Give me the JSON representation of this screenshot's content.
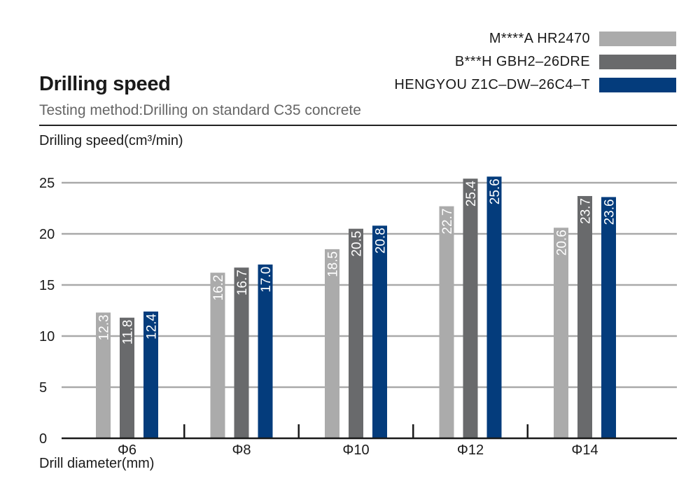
{
  "page": {
    "title": "Drilling speed",
    "subtitle": "Testing method:Drilling on standard C35 concrete"
  },
  "legend": [
    {
      "label": "M****A  HR2470",
      "color": "#ababab"
    },
    {
      "label": "B***H  GBH2–26DRE",
      "color": "#696a6c"
    },
    {
      "label": "HENGYOU  Z1C–DW–26C4–T",
      "color": "#043c7c"
    }
  ],
  "chart_data": {
    "type": "bar",
    "ylabel": "Drilling speed(cm³/min)",
    "xlabel": "Drill diameter(mm)",
    "categories": [
      "Φ6",
      "Φ8",
      "Φ10",
      "Φ12",
      "Φ14"
    ],
    "series": [
      {
        "name": "M****A  HR2470",
        "color": "#ababab",
        "values": [
          12.3,
          16.2,
          18.5,
          22.7,
          20.6
        ]
      },
      {
        "name": "B***H  GBH2–26DRE",
        "color": "#696a6c",
        "values": [
          11.8,
          16.7,
          20.5,
          25.4,
          23.7
        ]
      },
      {
        "name": "HENGYOU  Z1C–DW–26C4–T",
        "color": "#043c7c",
        "values": [
          12.4,
          17.0,
          20.8,
          25.6,
          23.6
        ]
      }
    ],
    "value_labels": [
      [
        "12.3",
        "16.2",
        "18.5",
        "22.7",
        "20.6"
      ],
      [
        "11.8",
        "16.7",
        "20.5",
        "25.4",
        "23.7"
      ],
      [
        "12.4",
        "17.0",
        "20.8",
        "25.6",
        "23.6"
      ]
    ],
    "yticks": [
      0,
      5,
      10,
      15,
      20,
      25
    ],
    "ytick_labels": [
      "0",
      "5",
      "10",
      "15",
      "20",
      "25"
    ],
    "ylim": [
      0,
      25
    ],
    "grid": true,
    "legend_position": "top-right"
  }
}
